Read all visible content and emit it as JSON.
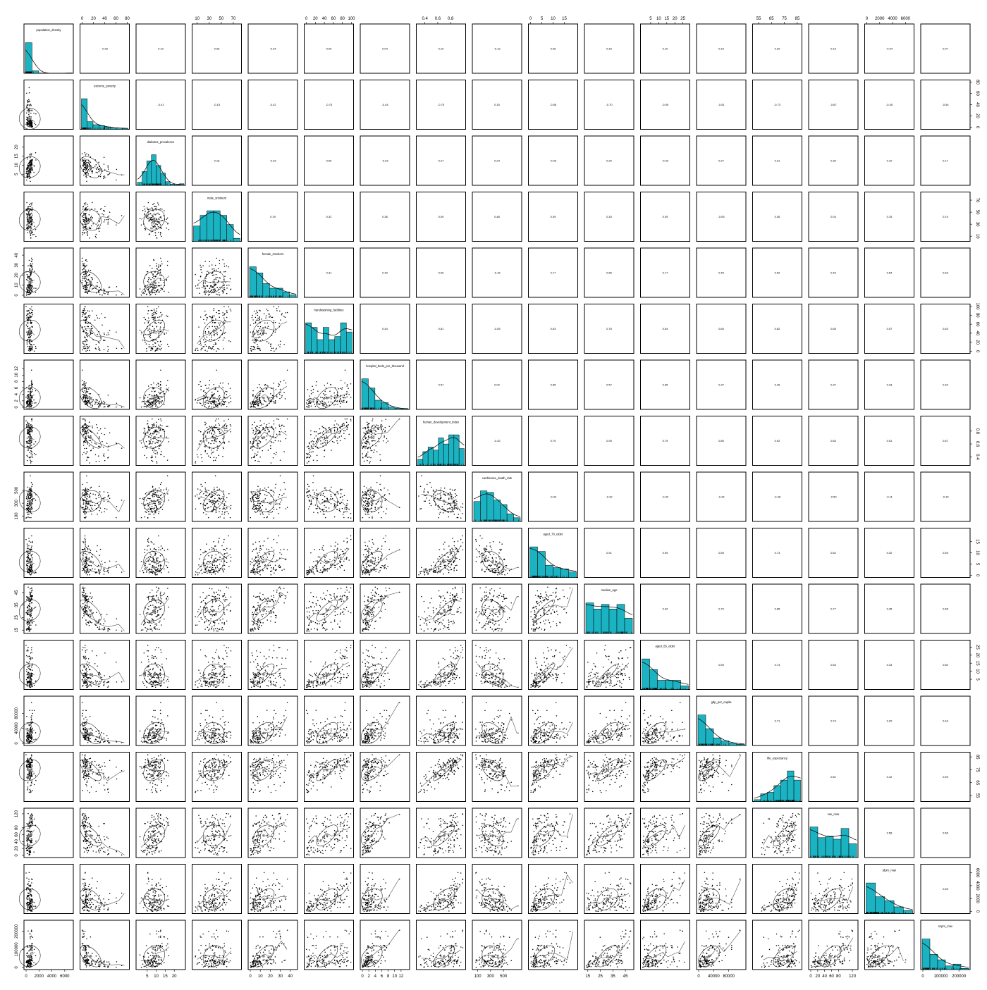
{
  "chart_data": {
    "type": "scatter",
    "title": "",
    "variables": [
      {
        "name": "population_density",
        "range": [
          0,
          7000
        ],
        "ticks": [
          "0",
          "2000",
          "4000",
          "6000"
        ],
        "hist_heights": [
          1.0,
          0.08,
          0.01,
          0,
          0,
          0,
          0.01
        ]
      },
      {
        "name": "extreme_poverty",
        "range": [
          0,
          80
        ],
        "ticks": [
          "0",
          "20",
          "40",
          "60",
          "80"
        ],
        "hist_heights": [
          1.0,
          0.25,
          0.15,
          0.12,
          0.08,
          0.05,
          0.04,
          0.03
        ]
      },
      {
        "name": "diabetes_prevalence",
        "range": [
          0,
          25
        ],
        "ticks": [
          "5",
          "10",
          "15",
          "20"
        ],
        "hist_heights": [
          0.1,
          0.45,
          0.8,
          1.0,
          0.65,
          0.4,
          0.12,
          0.04,
          0.02,
          0.05
        ]
      },
      {
        "name": "male_smokers",
        "range": [
          5,
          80
        ],
        "ticks": [
          "10",
          "30",
          "50",
          "70"
        ],
        "hist_heights": [
          0.5,
          0.85,
          1.0,
          1.0,
          0.85,
          0.55,
          0.1
        ]
      },
      {
        "name": "female_smokers",
        "range": [
          0,
          45
        ],
        "ticks": [
          "0",
          "10",
          "20",
          "30",
          "40"
        ],
        "hist_heights": [
          1.0,
          0.8,
          0.45,
          0.3,
          0.3,
          0.18,
          0.08
        ]
      },
      {
        "name": "handwashing_facilities",
        "range": [
          0,
          100
        ],
        "ticks": [
          "0",
          "20",
          "40",
          "60",
          "80",
          "100"
        ],
        "hist_heights": [
          1.0,
          0.85,
          0.45,
          0.85,
          0.45,
          0.55,
          1.0,
          0.7
        ]
      },
      {
        "name": "hospital_beds_per_thousand",
        "range": [
          0,
          14
        ],
        "ticks": [
          "0",
          "2",
          "4",
          "6",
          "8",
          "10",
          "12"
        ],
        "hist_heights": [
          1.0,
          0.7,
          0.3,
          0.22,
          0.08,
          0.04,
          0.02
        ]
      },
      {
        "name": "human_development_index",
        "range": [
          0.3,
          1.0
        ],
        "ticks": [
          "0.4",
          "0.6",
          "0.8"
        ],
        "hist_heights": [
          0.2,
          0.45,
          0.6,
          0.5,
          0.9,
          0.7,
          1.0,
          1.0,
          0.55
        ]
      },
      {
        "name": "cardiovasc_death_rate",
        "range": [
          50,
          750
        ],
        "ticks": [
          "100",
          "300",
          "500"
        ],
        "hist_heights": [
          0.65,
          1.0,
          0.95,
          0.7,
          0.55,
          0.25,
          0.12
        ]
      },
      {
        "name": "aged_70_older",
        "range": [
          0,
          20
        ],
        "ticks": [
          "0",
          "5",
          "10",
          "15"
        ],
        "hist_heights": [
          1.0,
          0.85,
          0.4,
          0.32,
          0.28,
          0.18
        ]
      },
      {
        "name": "median_age",
        "range": [
          14,
          50
        ],
        "ticks": [
          "15",
          "25",
          "35",
          "45"
        ],
        "hist_heights": [
          1.0,
          0.8,
          0.95,
          0.8,
          0.95,
          0.5
        ]
      },
      {
        "name": "aged_65_older",
        "range": [
          0,
          28
        ],
        "ticks": [
          "5",
          "10",
          "15",
          "20",
          "25"
        ],
        "hist_heights": [
          1.0,
          0.65,
          0.3,
          0.3,
          0.3,
          0.12
        ]
      },
      {
        "name": "gdp_per_capita",
        "range": [
          0,
          120000
        ],
        "ticks": [
          "0",
          "40000",
          "80000"
        ],
        "hist_heights": [
          1.0,
          0.55,
          0.25,
          0.15,
          0.08,
          0.04
        ]
      },
      {
        "name": "life_expectancy",
        "range": [
          52,
          87
        ],
        "ticks": [
          "55",
          "65",
          "75",
          "85"
        ],
        "hist_heights": [
          0.06,
          0.25,
          0.3,
          0.52,
          0.7,
          1.0,
          0.7
        ]
      },
      {
        "name": "vax_max",
        "range": [
          0,
          130
        ],
        "ticks": [
          "0",
          "20",
          "40",
          "60",
          "80",
          "120"
        ],
        "hist_heights": [
          1.0,
          0.65,
          0.7,
          0.6,
          0.95,
          0.45
        ]
      },
      {
        "name": "tdpm_max",
        "range": [
          0,
          7000
        ],
        "ticks": [
          "0",
          "2000",
          "4000",
          "6000"
        ],
        "hist_heights": [
          1.0,
          0.55,
          0.42,
          0.22,
          0.1
        ]
      },
      {
        "name": "scpm_max",
        "range": [
          0,
          250000
        ],
        "ticks": [
          "0",
          "100000",
          "200000"
        ],
        "hist_heights": [
          1.0,
          0.5,
          0.32,
          0.12,
          0.18,
          0.04
        ]
      }
    ],
    "correlations": [
      [
        "",
        "-0.02",
        "0.10",
        "0.06",
        "-0.04",
        "0.09",
        "0.04",
        "0.10",
        "-0.19",
        "0.06",
        "0.15",
        "0.10",
        "0.15",
        "0.20",
        "0.15",
        "-0.04",
        "0.07"
      ],
      [
        "",
        "",
        "-0.41",
        "-0.15",
        "-0.42",
        "-0.75",
        "-0.44",
        "-0.75",
        "0.15",
        "-0.56",
        "-0.70",
        "-0.59",
        "-0.51",
        "-0.73",
        "-0.67",
        "-0.45",
        "-0.54"
      ],
      [
        "",
        "",
        "",
        "0.18",
        "-0.03",
        "0.50",
        "-0.03",
        "0.27",
        "0.24",
        "-0.03",
        "0.20",
        "-0.02",
        "0.27",
        "0.31",
        "0.30",
        "0.10",
        "0.17"
      ],
      [
        "",
        "",
        "",
        "",
        "0.19",
        "0.32",
        "0.36",
        "0.09",
        "0.48",
        "0.09",
        "0.15",
        "0.09",
        "-0.05",
        "0.06",
        "0.04",
        "0.15",
        "0.19"
      ],
      [
        "",
        "",
        "",
        "",
        "",
        "0.31",
        "0.49",
        "0.60",
        "-0.16",
        "0.77",
        "0.65",
        "0.77",
        "0.45",
        "0.52",
        "0.40",
        "0.54",
        "0.63"
      ],
      [
        "",
        "",
        "",
        "",
        "",
        "",
        "0.44",
        "0.81",
        "-0.05",
        "0.63",
        "0.78",
        "0.64",
        "0.60",
        "0.82",
        "0.65",
        "0.57",
        "0.63"
      ],
      [
        "",
        "",
        "",
        "",
        "",
        "",
        "",
        "0.57",
        "0.02",
        "0.65",
        "0.57",
        "0.65",
        "0.37",
        "0.46",
        "0.37",
        "0.33",
        "0.40"
      ],
      [
        "",
        "",
        "",
        "",
        "",
        "",
        "",
        "",
        "-0.42",
        "0.79",
        "0.90",
        "0.79",
        "0.80",
        "0.92",
        "0.83",
        "0.51",
        "0.67"
      ],
      [
        "",
        "",
        "",
        "",
        "",
        "",
        "",
        "",
        "",
        "-0.34",
        "-0.32",
        "-0.32",
        "-0.44",
        "-0.48",
        "-0.50",
        "-0.11",
        "-0.15"
      ],
      [
        "",
        "",
        "",
        "",
        "",
        "",
        "",
        "",
        "",
        "",
        "0.91",
        "0.99",
        "0.59",
        "0.73",
        "0.62",
        "0.32",
        "0.59"
      ],
      [
        "",
        "",
        "",
        "",
        "",
        "",
        "",
        "",
        "",
        "",
        "",
        "0.92",
        "0.70",
        "0.85",
        "0.77",
        "0.35",
        "0.65"
      ],
      [
        "",
        "",
        "",
        "",
        "",
        "",
        "",
        "",
        "",
        "",
        "",
        "",
        "0.59",
        "0.74",
        "0.63",
        "0.33",
        "0.60"
      ],
      [
        "",
        "",
        "",
        "",
        "",
        "",
        "",
        "",
        "",
        "",
        "",
        "",
        "",
        "0.71",
        "0.74",
        "0.20",
        "0.44"
      ],
      [
        "",
        "",
        "",
        "",
        "",
        "",
        "",
        "",
        "",
        "",
        "",
        "",
        "",
        "",
        "0.81",
        "0.42",
        "0.59"
      ],
      [
        "",
        "",
        "",
        "",
        "",
        "",
        "",
        "",
        "",
        "",
        "",
        "",
        "",
        "",
        "",
        "0.58",
        "0.56"
      ],
      [
        "",
        "",
        "",
        "",
        "",
        "",
        "",
        "",
        "",
        "",
        "",
        "",
        "",
        "",
        "",
        "",
        "0.69"
      ],
      [
        "",
        "",
        "",
        "",
        "",
        "",
        "",
        "",
        "",
        "",
        "",
        "",
        "",
        "",
        "",
        "",
        ""
      ]
    ],
    "lower_panel": "scatter with loess smoother and correlation ellipse",
    "diagonal_panel": "histogram with density curve",
    "upper_panel": "Pearson correlation",
    "points_per_panel": 140,
    "grid": false,
    "legend": "none"
  },
  "colors": {
    "hist_fill": "#1bb3c2",
    "hist_stroke": "#000000",
    "point": "#000000",
    "center_point": "#888888",
    "frame": "#000000",
    "background": "#ffffff"
  }
}
